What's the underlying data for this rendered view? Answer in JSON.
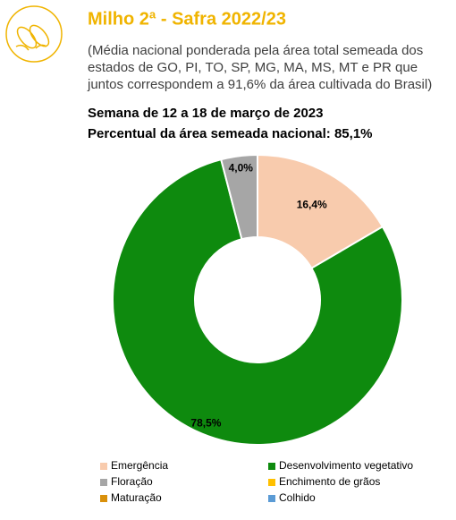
{
  "chart_data": {
    "type": "donut",
    "title": "Milho 2ª - Safra 2022/23",
    "subtitle": [
      "(Média nacional ponderada pela área total semeada dos",
      "estados de GO, PI, TO, SP, MG, MA, MS, MT e PR que",
      "juntos correspondem a 91,6% da área cultivada do Brasil)"
    ],
    "annotations": [
      "Semana de 12 a 18 de março de 2023",
      "Percentual da área semeada nacional: 85,1%"
    ],
    "categories": [
      "Emergência",
      "Desenvolvimento vegetativo",
      "Floração",
      "Enchimento de grãos",
      "Maturação",
      "Colhido"
    ],
    "values": [
      16.4,
      78.5,
      4.0,
      0,
      0,
      0
    ],
    "value_labels": [
      "16,4%",
      "78,5%",
      "4,0%",
      null,
      null,
      null
    ],
    "colors": [
      "#f8cbad",
      "#0e8a0e",
      "#a6a6a6",
      "#ffc000",
      "#d9900b",
      "#5b9bd5"
    ],
    "legend": "bottom"
  }
}
